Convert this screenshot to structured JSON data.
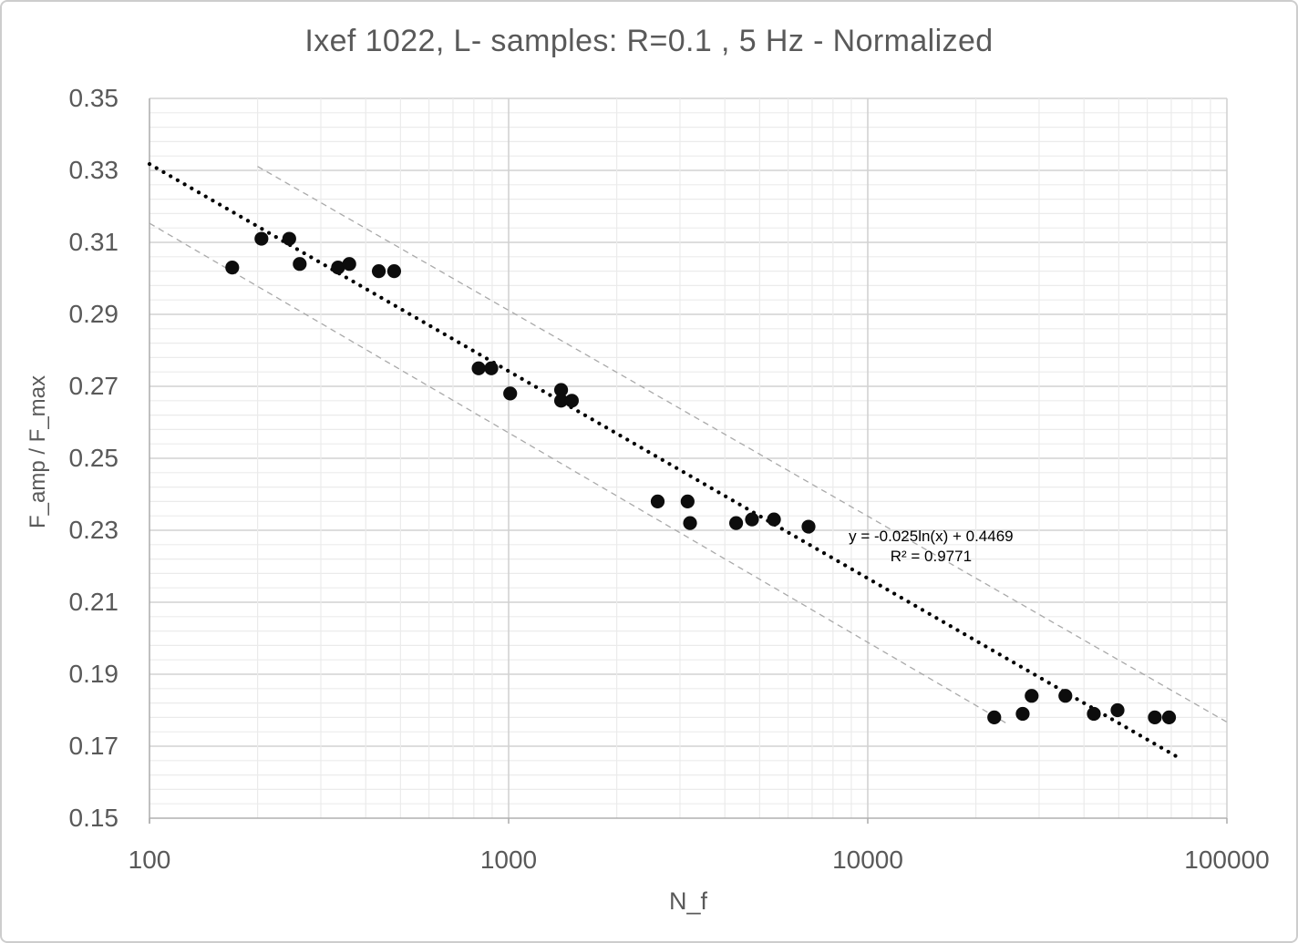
{
  "chart_data": {
    "type": "scatter",
    "title": "Ixef 1022, L- samples: R=0.1 , 5 Hz - Normalized",
    "xlabel": "N_f",
    "ylabel": "F_amp / F_max",
    "x_scale": "log",
    "xlim": [
      100,
      100000
    ],
    "ylim": [
      0.15,
      0.35
    ],
    "x_ticks": [
      100,
      1000,
      10000,
      100000
    ],
    "x_tick_labels": [
      "100",
      "1000",
      "10000",
      "100000"
    ],
    "y_ticks": [
      0.35,
      0.33,
      0.31,
      0.29,
      0.27,
      0.25,
      0.23,
      0.21,
      0.19,
      0.17,
      0.15
    ],
    "y_tick_labels": [
      "0.35",
      "0.33",
      "0.31",
      "0.29",
      "0.27",
      "0.25",
      "0.23",
      "0.21",
      "0.19",
      "0.17",
      "0.15"
    ],
    "y_major_step": 0.02,
    "y_minor_step": 0.004,
    "grid": "both",
    "legend": "none",
    "points": [
      [
        170,
        0.303
      ],
      [
        205,
        0.311
      ],
      [
        245,
        0.311
      ],
      [
        262,
        0.304
      ],
      [
        335,
        0.303
      ],
      [
        360,
        0.304
      ],
      [
        435,
        0.302
      ],
      [
        480,
        0.302
      ],
      [
        825,
        0.275
      ],
      [
        895,
        0.275
      ],
      [
        1010,
        0.268
      ],
      [
        1400,
        0.269
      ],
      [
        1400,
        0.266
      ],
      [
        1500,
        0.266
      ],
      [
        2600,
        0.238
      ],
      [
        3150,
        0.238
      ],
      [
        3200,
        0.232
      ],
      [
        4300,
        0.232
      ],
      [
        4760,
        0.233
      ],
      [
        5480,
        0.233
      ],
      [
        6840,
        0.231
      ],
      [
        22500,
        0.178
      ],
      [
        27000,
        0.179
      ],
      [
        28600,
        0.184
      ],
      [
        35500,
        0.184
      ],
      [
        42600,
        0.179
      ],
      [
        49600,
        0.18
      ],
      [
        63000,
        0.178
      ],
      [
        69000,
        0.178
      ]
    ],
    "trendline": {
      "fit": "logarithmic",
      "slope": -0.025,
      "intercept": 0.4469,
      "x_start": 100,
      "x_end": 72000
    },
    "bands": {
      "upper": {
        "x1": 200,
        "y1": 0.3311,
        "x2": 100000,
        "y2": 0.1767
      },
      "lower": {
        "x1": 100,
        "y1": 0.3153,
        "x2": 24500,
        "y2": 0.1762
      }
    },
    "annotation": {
      "line1": "y = -0.025ln(x) + 0.4469",
      "line2": "R² = 0.9771",
      "x": 15000,
      "y": 0.2282
    },
    "colors": {
      "text": "#595959",
      "annotation": "#000000",
      "point": "#0d0d0d",
      "trend": "#000000",
      "band": "#a9a9a9",
      "grid_minor": "#ebebeb",
      "grid_major": "#d2d2d2",
      "axis": "#b0b0b0"
    }
  }
}
